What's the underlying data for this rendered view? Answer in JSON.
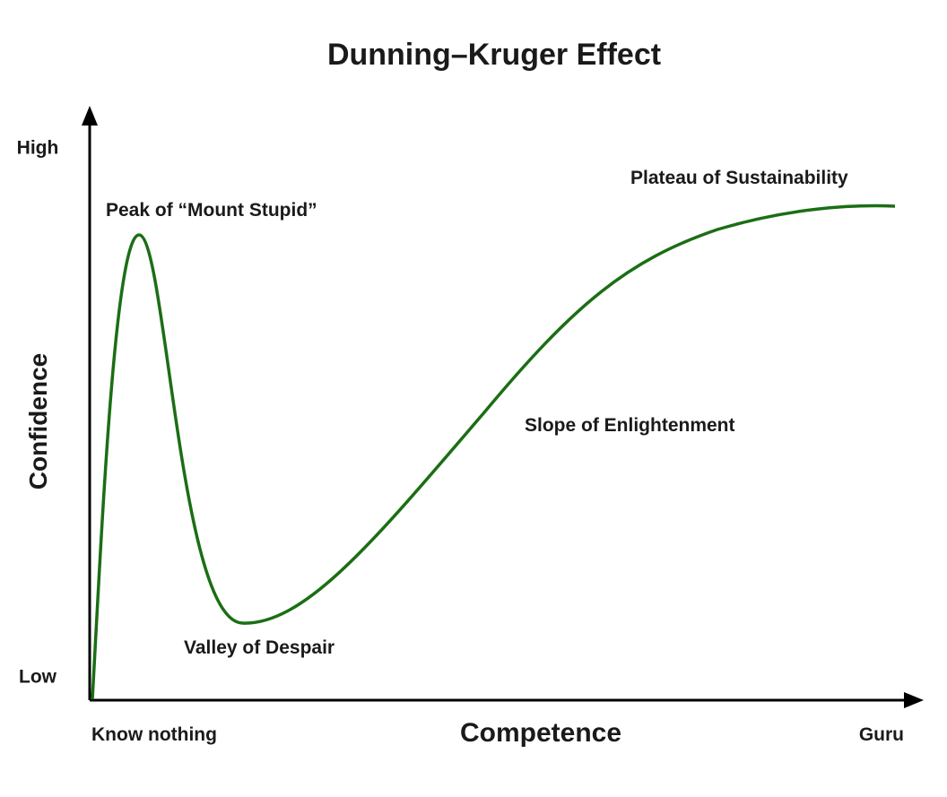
{
  "title": "Dunning–Kruger Effect",
  "y_axis": {
    "label": "Confidence",
    "high": "High",
    "low": "Low"
  },
  "x_axis": {
    "label": "Competence",
    "start": "Know nothing",
    "end": "Guru"
  },
  "annotations": {
    "peak": "Peak of “Mount Stupid”",
    "valley": "Valley of Despair",
    "slope": "Slope of Enlightenment",
    "plateau": "Plateau of Sustainability"
  }
}
